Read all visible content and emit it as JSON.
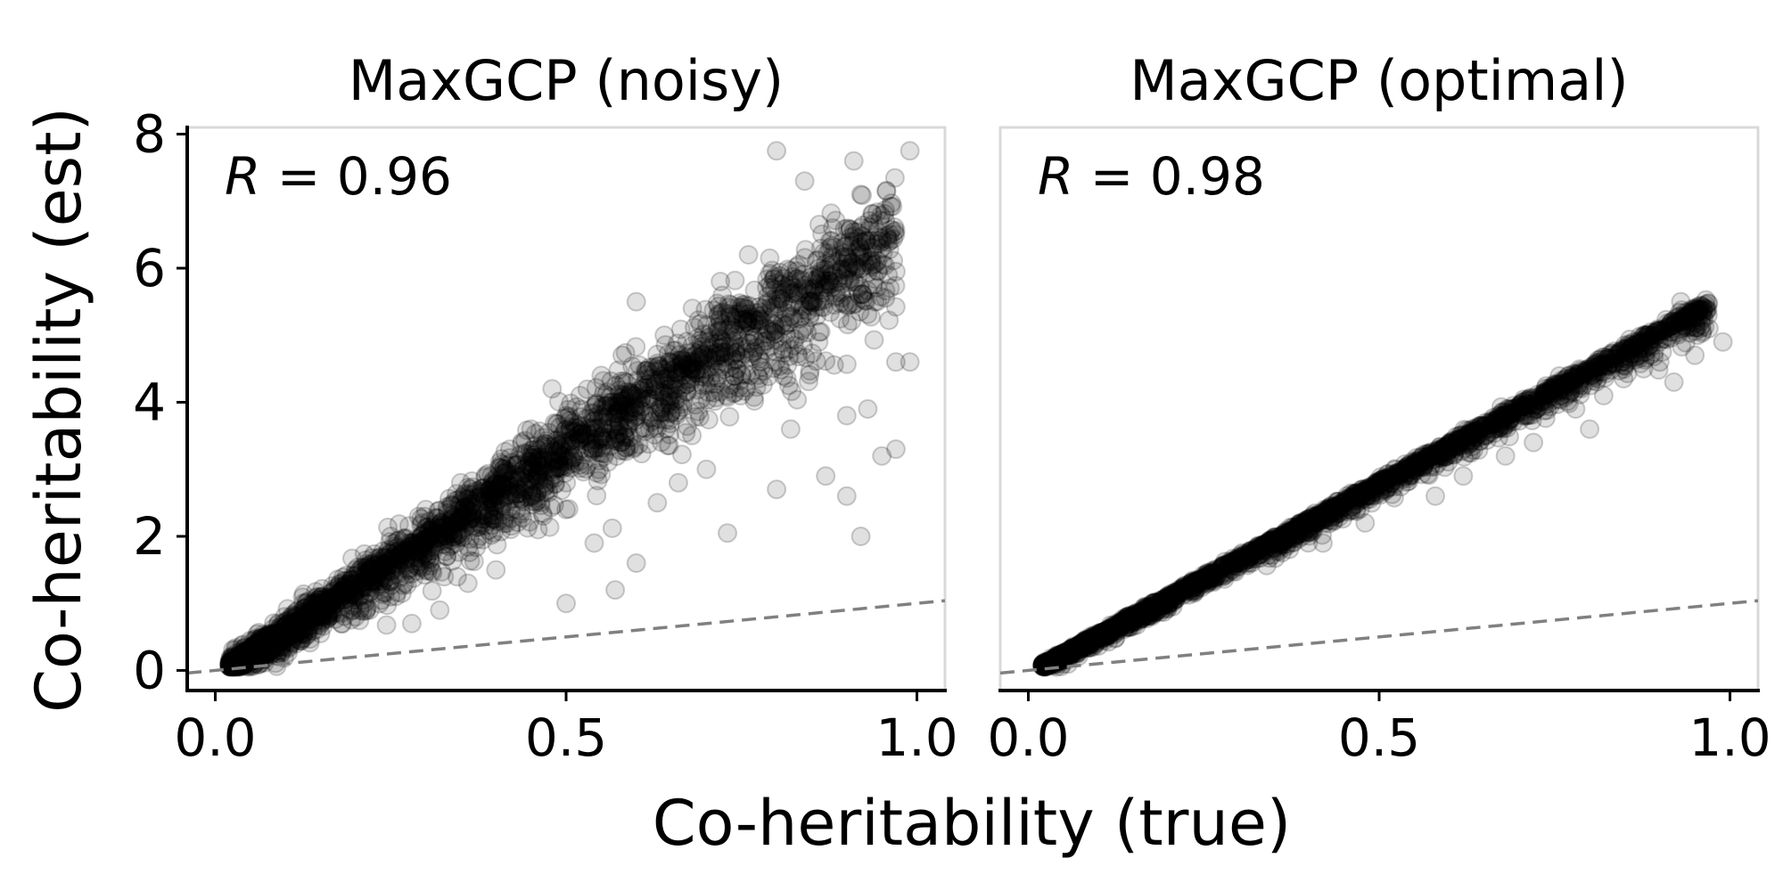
{
  "figure": {
    "xlabel": "Co-heritability (true)",
    "ylabel": "Co-heritability (est)"
  },
  "chart_data": [
    {
      "type": "scatter",
      "title": "MaxGCP (noisy)",
      "annotation": {
        "symbol": "R",
        "text": " = 0.96"
      },
      "xlim": [
        -0.04,
        1.04
      ],
      "ylim": [
        -0.3,
        8.1
      ],
      "xticks": [
        0.0,
        0.5,
        1.0
      ],
      "xtick_labels": [
        "0.0",
        "0.5",
        "1.0"
      ],
      "yticks": [
        0,
        2,
        4,
        6,
        8
      ],
      "ytick_labels": [
        "0",
        "2",
        "4",
        "6",
        "8"
      ],
      "reference_line": {
        "slope": 1,
        "intercept": 0,
        "style": "dashed",
        "color": "#808080"
      },
      "point_color": "#000000",
      "point_alpha": 0.12,
      "approx_trend": {
        "slope": 6.8,
        "intercept": -0.1,
        "spread_low": 0.1,
        "spread_high": 0.18
      },
      "points": [
        {
          "x": 0.8,
          "y": 7.75
        },
        {
          "x": 0.99,
          "y": 7.75
        },
        {
          "x": 0.91,
          "y": 7.6
        },
        {
          "x": 0.84,
          "y": 7.3
        },
        {
          "x": 0.92,
          "y": 7.1
        },
        {
          "x": 0.88,
          "y": 6.6
        },
        {
          "x": 0.95,
          "y": 6.4
        },
        {
          "x": 0.97,
          "y": 5.95
        },
        {
          "x": 0.94,
          "y": 5.5
        },
        {
          "x": 0.97,
          "y": 4.6
        },
        {
          "x": 0.99,
          "y": 4.6
        },
        {
          "x": 0.9,
          "y": 3.8
        },
        {
          "x": 0.93,
          "y": 3.9
        },
        {
          "x": 0.95,
          "y": 3.2
        },
        {
          "x": 0.97,
          "y": 3.3
        },
        {
          "x": 0.92,
          "y": 2.0
        },
        {
          "x": 0.9,
          "y": 2.6
        },
        {
          "x": 0.87,
          "y": 2.9
        },
        {
          "x": 0.8,
          "y": 2.7
        },
        {
          "x": 0.73,
          "y": 2.05
        },
        {
          "x": 0.6,
          "y": 1.6
        },
        {
          "x": 0.63,
          "y": 2.5
        },
        {
          "x": 0.57,
          "y": 1.2
        },
        {
          "x": 0.5,
          "y": 1.0
        },
        {
          "x": 0.54,
          "y": 1.9
        },
        {
          "x": 0.75,
          "y": 4.4
        },
        {
          "x": 0.82,
          "y": 3.6
        },
        {
          "x": 0.86,
          "y": 4.9
        },
        {
          "x": 0.7,
          "y": 3.0
        },
        {
          "x": 0.66,
          "y": 2.8
        },
        {
          "x": 0.76,
          "y": 6.2
        },
        {
          "x": 0.72,
          "y": 5.8
        },
        {
          "x": 0.68,
          "y": 5.4
        },
        {
          "x": 0.6,
          "y": 5.5
        },
        {
          "x": 0.64,
          "y": 5.0
        },
        {
          "x": 0.58,
          "y": 4.7
        },
        {
          "x": 0.55,
          "y": 4.4
        },
        {
          "x": 0.52,
          "y": 4.1
        },
        {
          "x": 0.48,
          "y": 4.2
        },
        {
          "x": 0.45,
          "y": 3.6
        },
        {
          "x": 0.44,
          "y": 3.0
        },
        {
          "x": 0.4,
          "y": 2.6
        },
        {
          "x": 0.38,
          "y": 2.3
        },
        {
          "x": 0.35,
          "y": 2.0
        },
        {
          "x": 0.33,
          "y": 1.7
        },
        {
          "x": 0.3,
          "y": 1.5
        },
        {
          "x": 0.27,
          "y": 1.3
        },
        {
          "x": 0.25,
          "y": 1.1
        },
        {
          "x": 0.22,
          "y": 0.9
        },
        {
          "x": 0.2,
          "y": 0.8
        },
        {
          "x": 0.18,
          "y": 0.7
        },
        {
          "x": 0.15,
          "y": 0.55
        },
        {
          "x": 0.12,
          "y": 0.45
        },
        {
          "x": 0.1,
          "y": 0.35
        },
        {
          "x": 0.08,
          "y": 0.3
        },
        {
          "x": 0.06,
          "y": 0.2
        },
        {
          "x": 0.04,
          "y": 0.1
        },
        {
          "x": 0.03,
          "y": 0.08
        },
        {
          "x": 0.35,
          "y": 2.8
        },
        {
          "x": 0.3,
          "y": 2.4
        },
        {
          "x": 0.25,
          "y": 2.0
        },
        {
          "x": 0.2,
          "y": 1.5
        },
        {
          "x": 0.15,
          "y": 1.1
        },
        {
          "x": 0.42,
          "y": 3.3
        },
        {
          "x": 0.5,
          "y": 3.8
        },
        {
          "x": 0.55,
          "y": 3.9
        },
        {
          "x": 0.6,
          "y": 4.1
        },
        {
          "x": 0.65,
          "y": 4.6
        },
        {
          "x": 0.7,
          "y": 4.9
        },
        {
          "x": 0.78,
          "y": 5.3
        },
        {
          "x": 0.83,
          "y": 5.6
        },
        {
          "x": 0.88,
          "y": 5.9
        },
        {
          "x": 0.93,
          "y": 6.1
        },
        {
          "x": 0.36,
          "y": 1.3
        },
        {
          "x": 0.4,
          "y": 1.5
        },
        {
          "x": 0.46,
          "y": 2.1
        },
        {
          "x": 0.5,
          "y": 2.4
        },
        {
          "x": 0.28,
          "y": 0.7
        },
        {
          "x": 0.32,
          "y": 0.9
        }
      ]
    },
    {
      "type": "scatter",
      "title": "MaxGCP (optimal)",
      "annotation": {
        "symbol": "R",
        "text": " = 0.98"
      },
      "xlim": [
        -0.04,
        1.04
      ],
      "ylim": [
        -0.3,
        8.1
      ],
      "xticks": [
        0.0,
        0.5,
        1.0
      ],
      "xtick_labels": [
        "0.0",
        "0.5",
        "1.0"
      ],
      "yticks": [
        0,
        2,
        4,
        6,
        8
      ],
      "ytick_labels": [],
      "reference_line": {
        "slope": 1,
        "intercept": 0,
        "style": "dashed",
        "color": "#808080"
      },
      "point_color": "#000000",
      "point_alpha": 0.12,
      "approx_trend": {
        "slope": 5.65,
        "intercept": -0.05,
        "spread_low": 0.06,
        "spread_high": 0.04
      },
      "points": [
        {
          "x": 0.93,
          "y": 5.5
        },
        {
          "x": 0.97,
          "y": 5.1
        },
        {
          "x": 0.99,
          "y": 4.9
        },
        {
          "x": 0.95,
          "y": 4.7
        },
        {
          "x": 0.9,
          "y": 4.6
        },
        {
          "x": 0.88,
          "y": 5.0
        },
        {
          "x": 0.85,
          "y": 4.85
        },
        {
          "x": 0.82,
          "y": 4.1
        },
        {
          "x": 0.78,
          "y": 3.9
        },
        {
          "x": 0.75,
          "y": 4.2
        },
        {
          "x": 0.7,
          "y": 3.95
        },
        {
          "x": 0.65,
          "y": 3.5
        },
        {
          "x": 0.6,
          "y": 3.3
        },
        {
          "x": 0.55,
          "y": 3.0
        },
        {
          "x": 0.5,
          "y": 2.75
        },
        {
          "x": 0.45,
          "y": 2.5
        },
        {
          "x": 0.4,
          "y": 2.2
        },
        {
          "x": 0.35,
          "y": 1.9
        },
        {
          "x": 0.3,
          "y": 1.6
        },
        {
          "x": 0.25,
          "y": 1.35
        },
        {
          "x": 0.2,
          "y": 1.05
        },
        {
          "x": 0.15,
          "y": 0.8
        },
        {
          "x": 0.1,
          "y": 0.5
        },
        {
          "x": 0.05,
          "y": 0.25
        },
        {
          "x": 0.03,
          "y": 0.1
        },
        {
          "x": 0.62,
          "y": 2.9
        },
        {
          "x": 0.68,
          "y": 3.2
        },
        {
          "x": 0.72,
          "y": 3.4
        },
        {
          "x": 0.8,
          "y": 3.6
        },
        {
          "x": 0.92,
          "y": 4.3
        },
        {
          "x": 0.58,
          "y": 2.6
        },
        {
          "x": 0.48,
          "y": 2.2
        },
        {
          "x": 0.42,
          "y": 1.9
        }
      ]
    }
  ]
}
